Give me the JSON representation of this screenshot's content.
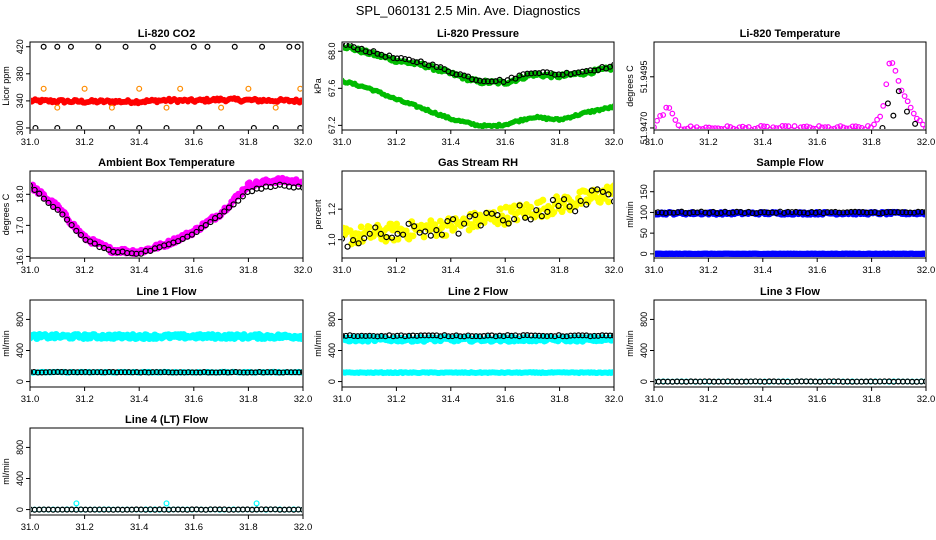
{
  "figure_title": "SPL_060131  2.5 Min. Ave. Diagnostics",
  "x_ticks": [
    "31.0",
    "31.2",
    "31.4",
    "31.6",
    "31.8",
    "32.0"
  ],
  "colors": {
    "black": "#000000",
    "red": "#ff0000",
    "orange": "#ff8c00",
    "green": "#00bb00",
    "magenta": "#ff00ff",
    "yellow": "#ffff00",
    "blue": "#0000ff",
    "cyan": "#00ffff"
  },
  "chart_data": [
    {
      "id": "co2",
      "type": "scatter",
      "title": "Li-820 CO2",
      "ylabel": "Licor ppm",
      "xlim": [
        31.0,
        32.0
      ],
      "ylim": [
        297,
        427
      ],
      "yticks": [
        300,
        340,
        380,
        420
      ],
      "ytick_labels": [
        "300",
        "340",
        "380",
        "420"
      ],
      "series": [
        {
          "name": "co2_main",
          "color": "red",
          "filled": true,
          "x": [
            31.0,
            31.2,
            31.4,
            31.5,
            31.6,
            31.7,
            31.8,
            32.0
          ],
          "y": [
            340,
            339,
            339,
            341,
            340,
            342,
            341,
            340
          ]
        },
        {
          "name": "co2_diag_high",
          "color": "black",
          "filled": false,
          "x": [
            31.05,
            31.1,
            31.15,
            31.25,
            31.35,
            31.45,
            31.6,
            31.65,
            31.75,
            31.85,
            31.95,
            31.98
          ],
          "y": [
            420,
            420,
            420,
            420,
            420,
            420,
            420,
            420,
            420,
            420,
            420,
            420
          ]
        },
        {
          "name": "co2_diag_mid",
          "color": "orange",
          "filled": false,
          "x": [
            31.05,
            31.1,
            31.2,
            31.3,
            31.4,
            31.5,
            31.55,
            31.7,
            31.8,
            31.9,
            31.99
          ],
          "y": [
            358,
            330,
            358,
            330,
            358,
            330,
            358,
            330,
            358,
            330,
            358
          ]
        },
        {
          "name": "co2_diag_low",
          "color": "black",
          "filled": false,
          "x": [
            31.02,
            31.1,
            31.18,
            31.3,
            31.4,
            31.5,
            31.62,
            31.7,
            31.82,
            31.9,
            31.99
          ],
          "y": [
            300,
            300,
            300,
            300,
            300,
            300,
            300,
            300,
            300,
            300,
            300
          ]
        }
      ]
    },
    {
      "id": "pressure",
      "type": "scatter",
      "title": "Li-820 Pressure",
      "ylabel": "kPa",
      "xlim": [
        31.0,
        32.0
      ],
      "ylim": [
        67.15,
        68.1
      ],
      "yticks": [
        67.2,
        67.6,
        68.0
      ],
      "ytick_labels": [
        "67.2",
        "67.6",
        "68.0"
      ],
      "series": [
        {
          "name": "pressure_main",
          "color": "green",
          "filled": true,
          "x": [
            31.0,
            31.1,
            31.2,
            31.3,
            31.4,
            31.5,
            31.6,
            31.7,
            31.8,
            31.9,
            32.0
          ],
          "y": [
            68.06,
            67.98,
            67.9,
            67.85,
            67.76,
            67.67,
            67.66,
            67.75,
            67.73,
            67.77,
            67.82
          ]
        },
        {
          "name": "pressure_diag",
          "color": "black",
          "filled": false,
          "x": [
            31.0,
            31.1,
            31.2,
            31.3,
            31.4,
            31.5,
            31.6,
            31.7,
            31.8,
            31.9,
            32.0
          ],
          "y": [
            68.08,
            68.0,
            67.92,
            67.88,
            67.78,
            67.69,
            67.68,
            67.78,
            67.75,
            67.79,
            67.84
          ]
        },
        {
          "name": "pressure_reference",
          "color": "green",
          "filled": true,
          "x": [
            31.0,
            31.1,
            31.2,
            31.3,
            31.4,
            31.5,
            31.55,
            31.6,
            31.7,
            31.8,
            31.9,
            32.0
          ],
          "y": [
            67.68,
            67.6,
            67.48,
            67.38,
            67.27,
            67.2,
            67.19,
            67.21,
            67.29,
            67.26,
            67.34,
            67.4
          ]
        }
      ]
    },
    {
      "id": "temperature",
      "type": "scatter",
      "title": "Li-820 Temperature",
      "ylabel": "degrees C",
      "xlim": [
        31.0,
        32.0
      ],
      "ylim": [
        51.9469,
        51.9512
      ],
      "yticks": [
        51.947,
        51.9495
      ],
      "ytick_labels": [
        "51.9470",
        "51.9495"
      ],
      "series": [
        {
          "name": "temp_main",
          "color": "magenta",
          "filled": false,
          "x": [
            31.0,
            31.02,
            31.05,
            31.1,
            31.3,
            31.5,
            31.7,
            31.8,
            31.84,
            31.87,
            31.9,
            31.95,
            32.0
          ],
          "y": [
            51.947,
            51.9475,
            51.948,
            51.947,
            51.947,
            51.947,
            51.947,
            51.947,
            51.9478,
            51.9505,
            51.9492,
            51.9478,
            51.947
          ]
        },
        {
          "name": "temp_diag",
          "color": "black",
          "filled": false,
          "x": [
            31.84,
            31.86,
            31.88,
            31.9,
            31.93,
            31.96
          ],
          "y": [
            51.947,
            51.9482,
            51.9476,
            51.9488,
            51.9478,
            51.9472
          ]
        }
      ]
    },
    {
      "id": "ambient",
      "type": "scatter",
      "title": "Ambient Box Temperature",
      "ylabel": "degrees C",
      "xlim": [
        31.0,
        32.0
      ],
      "ylim": [
        15.95,
        18.75
      ],
      "yticks": [
        16.0,
        17.0,
        18.0
      ],
      "ytick_labels": [
        "16.0",
        "17.0",
        "18.0"
      ],
      "series": [
        {
          "name": "ambient_main",
          "color": "magenta",
          "filled": true,
          "x": [
            31.0,
            31.1,
            31.2,
            31.3,
            31.4,
            31.5,
            31.6,
            31.7,
            31.8,
            31.9,
            32.0
          ],
          "y": [
            18.3,
            17.6,
            16.6,
            16.2,
            16.15,
            16.4,
            16.8,
            17.4,
            18.3,
            18.45,
            18.4
          ]
        },
        {
          "name": "ambient_diag",
          "color": "black",
          "filled": false,
          "x": [
            31.0,
            31.1,
            31.2,
            31.3,
            31.4,
            31.5,
            31.6,
            31.7,
            31.8,
            31.9,
            32.0
          ],
          "y": [
            18.25,
            17.5,
            16.55,
            16.15,
            16.1,
            16.35,
            16.75,
            17.35,
            18.1,
            18.3,
            18.2
          ]
        }
      ]
    },
    {
      "id": "rh",
      "type": "scatter",
      "title": "Gas Stream RH",
      "ylabel": "percent",
      "xlim": [
        31.0,
        32.0
      ],
      "ylim": [
        0.88,
        1.45
      ],
      "yticks": [
        1.0,
        1.2
      ],
      "ytick_labels": [
        "1.0",
        "1.2"
      ],
      "series": [
        {
          "name": "rh_main",
          "color": "yellow",
          "filled": true,
          "x": [
            31.0,
            31.2,
            31.4,
            31.6,
            31.8,
            32.0
          ],
          "y": [
            1.02,
            1.05,
            1.09,
            1.16,
            1.23,
            1.31
          ]
        },
        {
          "name": "rh_diag",
          "color": "black",
          "filled": false,
          "x": [
            31.0,
            31.2,
            31.4,
            31.6,
            31.8,
            32.0
          ],
          "y": [
            1.0,
            1.04,
            1.08,
            1.15,
            1.22,
            1.3
          ]
        }
      ]
    },
    {
      "id": "sample_flow",
      "type": "scatter",
      "title": "Sample Flow",
      "ylabel": "ml/min",
      "xlim": [
        31.0,
        32.0
      ],
      "ylim": [
        -10,
        200
      ],
      "yticks": [
        0,
        50,
        100,
        150
      ],
      "ytick_labels": [
        "0",
        "50",
        "100",
        "150"
      ],
      "series": [
        {
          "name": "sample_main",
          "color": "blue",
          "filled": true,
          "x": [
            31.0,
            32.0
          ],
          "y": [
            98,
            98
          ]
        },
        {
          "name": "sample_diag",
          "color": "black",
          "filled": false,
          "x": [
            31.0,
            32.0
          ],
          "y": [
            100,
            100
          ]
        },
        {
          "name": "sample_zero",
          "color": "blue",
          "filled": true,
          "x": [
            31.0,
            32.0
          ],
          "y": [
            0,
            0
          ]
        }
      ]
    },
    {
      "id": "line1",
      "type": "scatter",
      "title": "Line 1 Flow",
      "ylabel": "ml/min",
      "xlim": [
        31.0,
        32.0
      ],
      "ylim": [
        -70,
        1050
      ],
      "yticks": [
        0,
        400,
        800
      ],
      "ytick_labels": [
        "0",
        "400",
        "800"
      ],
      "series": [
        {
          "name": "line1_main",
          "color": "cyan",
          "filled": true,
          "x": [
            31.0,
            32.0
          ],
          "y": [
            580,
            580
          ]
        },
        {
          "name": "line1_low",
          "color": "cyan",
          "filled": true,
          "x": [
            31.0,
            32.0
          ],
          "y": [
            120,
            120
          ]
        },
        {
          "name": "line1_diag",
          "color": "black",
          "filled": false,
          "x": [
            31.0,
            32.0
          ],
          "y": [
            120,
            120
          ]
        }
      ]
    },
    {
      "id": "line2",
      "type": "scatter",
      "title": "Line 2 Flow",
      "ylabel": "ml/min",
      "xlim": [
        31.0,
        32.0
      ],
      "ylim": [
        -70,
        1050
      ],
      "yticks": [
        0,
        400,
        800
      ],
      "ytick_labels": [
        "0",
        "400",
        "800"
      ],
      "series": [
        {
          "name": "line2_main",
          "color": "cyan",
          "filled": true,
          "x": [
            31.0,
            32.0
          ],
          "y": [
            545,
            545
          ]
        },
        {
          "name": "line2_diag",
          "color": "black",
          "filled": false,
          "x": [
            31.0,
            32.0
          ],
          "y": [
            590,
            590
          ]
        },
        {
          "name": "line2_low",
          "color": "cyan",
          "filled": true,
          "x": [
            31.0,
            32.0
          ],
          "y": [
            115,
            115
          ]
        }
      ]
    },
    {
      "id": "line3",
      "type": "scatter",
      "title": "Line 3 Flow",
      "ylabel": "ml/min",
      "xlim": [
        31.0,
        32.0
      ],
      "ylim": [
        -70,
        1050
      ],
      "yticks": [
        0,
        400,
        800
      ],
      "ytick_labels": [
        "0",
        "400",
        "800"
      ],
      "series": [
        {
          "name": "line3_main",
          "color": "cyan",
          "filled": false,
          "x": [
            31.0,
            32.0
          ],
          "y": [
            0,
            0
          ]
        },
        {
          "name": "line3_diag",
          "color": "black",
          "filled": false,
          "x": [
            31.0,
            32.0
          ],
          "y": [
            0,
            0
          ]
        }
      ]
    },
    {
      "id": "line4",
      "type": "scatter",
      "title": "Line 4 (LT) Flow",
      "ylabel": "ml/min",
      "xlim": [
        31.0,
        32.0
      ],
      "ylim": [
        -70,
        1050
      ],
      "yticks": [
        0,
        400,
        800
      ],
      "ytick_labels": [
        "0",
        "400",
        "800"
      ],
      "series": [
        {
          "name": "line4_main",
          "color": "cyan",
          "filled": false,
          "x": [
            31.0,
            32.0
          ],
          "y": [
            0,
            0
          ]
        },
        {
          "name": "line4_diag",
          "color": "black",
          "filled": false,
          "x": [
            31.0,
            32.0
          ],
          "y": [
            0,
            0
          ]
        },
        {
          "name": "line4_spikes",
          "color": "cyan",
          "filled": false,
          "x": [
            31.17,
            31.5,
            31.83
          ],
          "y": [
            80,
            80,
            80
          ]
        }
      ]
    }
  ]
}
